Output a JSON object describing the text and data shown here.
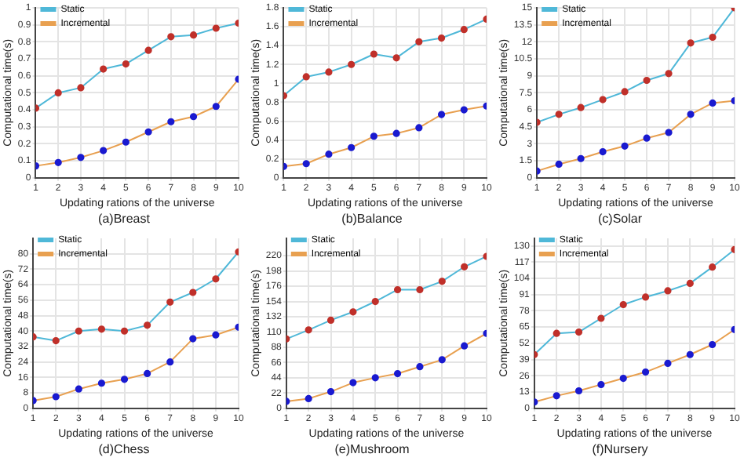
{
  "chart_data": [
    {
      "type": "line",
      "xlabel": "Updating rations of the universe",
      "ylabel": "Computational time(s)",
      "annotations": [
        "(a)Breast"
      ],
      "x": [
        1,
        2,
        3,
        4,
        5,
        6,
        7,
        8,
        9,
        10
      ],
      "xlim": [
        1,
        10
      ],
      "xticks": [
        1,
        2,
        3,
        4,
        5,
        6,
        7,
        8,
        9,
        10
      ],
      "ylim": [
        0,
        1
      ],
      "yticks": [
        0,
        0.1,
        0.2,
        0.3,
        0.4,
        0.5,
        0.6,
        0.7,
        0.8,
        0.9,
        1
      ],
      "grid": true,
      "legend": "top left",
      "marker": "circle",
      "series": [
        {
          "name": "Static",
          "color": "#4fb8d8",
          "colors": [
            "#c0302a",
            "#c0302a",
            "#c0302a",
            "#c0302a",
            "#c0302a",
            "#c0302a",
            "#c0302a",
            "#c0302a",
            "#c0302a",
            "#c0302a"
          ],
          "values": [
            0.41,
            0.5,
            0.53,
            0.64,
            0.67,
            0.75,
            0.83,
            0.84,
            0.88,
            0.91
          ]
        },
        {
          "name": "Incremental",
          "color": "#e8a050",
          "colors": [
            "#1a1ad0",
            "#1a1ad0",
            "#1a1ad0",
            "#1a1ad0",
            "#1a1ad0",
            "#1a1ad0",
            "#1a1ad0",
            "#1a1ad0",
            "#1a1ad0",
            "#1a1ad0"
          ],
          "values": [
            0.07,
            0.09,
            0.12,
            0.16,
            0.21,
            0.27,
            0.33,
            0.36,
            0.42,
            0.58
          ]
        }
      ]
    },
    {
      "type": "line",
      "xlabel": "Updating rations of the universe",
      "ylabel": "Computational time(s)",
      "annotations": [
        "(b)Balance"
      ],
      "x": [
        1,
        2,
        3,
        4,
        5,
        6,
        7,
        8,
        9,
        10
      ],
      "xlim": [
        1,
        10
      ],
      "xticks": [
        1,
        2,
        3,
        4,
        5,
        6,
        7,
        8,
        9,
        10
      ],
      "ylim": [
        0,
        1.8
      ],
      "yticks": [
        0,
        0.2,
        0.4,
        0.6,
        0.8,
        1,
        1.2,
        1.4,
        1.6,
        1.8
      ],
      "grid": true,
      "legend": "top left",
      "marker": "circle",
      "series": [
        {
          "name": "Static",
          "color": "#4fb8d8",
          "colors": [
            "#c0302a",
            "#c0302a",
            "#c0302a",
            "#c0302a",
            "#c0302a",
            "#c0302a",
            "#c0302a",
            "#c0302a",
            "#c0302a",
            "#c0302a"
          ],
          "values": [
            0.87,
            1.07,
            1.12,
            1.2,
            1.31,
            1.27,
            1.44,
            1.48,
            1.57,
            1.68
          ]
        },
        {
          "name": "Incremental",
          "color": "#e8a050",
          "colors": [
            "#1a1ad0",
            "#1a1ad0",
            "#1a1ad0",
            "#1a1ad0",
            "#1a1ad0",
            "#1a1ad0",
            "#1a1ad0",
            "#1a1ad0",
            "#1a1ad0",
            "#1a1ad0"
          ],
          "values": [
            0.12,
            0.15,
            0.25,
            0.32,
            0.44,
            0.47,
            0.53,
            0.67,
            0.72,
            0.76
          ]
        }
      ]
    },
    {
      "type": "line",
      "xlabel": "Updating rations of the universe",
      "ylabel": "Computational time(s)",
      "annotations": [
        "(c)Solar"
      ],
      "x": [
        1,
        2,
        3,
        4,
        5,
        6,
        7,
        8,
        9,
        10
      ],
      "xlim": [
        1,
        10
      ],
      "xticks": [
        1,
        2,
        3,
        4,
        5,
        6,
        7,
        8,
        9,
        10
      ],
      "ylim": [
        0,
        15
      ],
      "yticks": [
        0,
        1.5,
        3,
        4.5,
        6,
        7.5,
        9,
        10.5,
        12,
        13.5,
        15
      ],
      "grid": true,
      "legend": "top left",
      "marker": "circle",
      "series": [
        {
          "name": "Static",
          "color": "#4fb8d8",
          "colors": [
            "#c0302a",
            "#c0302a",
            "#c0302a",
            "#c0302a",
            "#c0302a",
            "#c0302a",
            "#c0302a",
            "#c0302a",
            "#c0302a",
            "#c0302a"
          ],
          "values": [
            4.9,
            5.6,
            6.2,
            6.9,
            7.6,
            8.6,
            9.2,
            11.9,
            12.4,
            15
          ]
        },
        {
          "name": "Incremental",
          "color": "#e8a050",
          "colors": [
            "#1a1ad0",
            "#1a1ad0",
            "#1a1ad0",
            "#1a1ad0",
            "#1a1ad0",
            "#1a1ad0",
            "#1a1ad0",
            "#1a1ad0",
            "#1a1ad0",
            "#1a1ad0"
          ],
          "values": [
            0.6,
            1.2,
            1.7,
            2.3,
            2.8,
            3.5,
            4,
            5.6,
            6.6,
            6.8
          ]
        }
      ]
    },
    {
      "type": "line",
      "xlabel": "Updating rations of the universe",
      "ylabel": "Computational time(s)",
      "annotations": [
        "(d)Chess"
      ],
      "x": [
        1,
        2,
        3,
        4,
        5,
        6,
        7,
        8,
        9,
        10
      ],
      "xlim": [
        1,
        10
      ],
      "xticks": [
        1,
        2,
        3,
        4,
        5,
        6,
        7,
        8,
        9,
        10
      ],
      "ylim": [
        0,
        88
      ],
      "yticks": [
        0,
        8,
        16,
        24,
        32,
        40,
        48,
        56,
        64,
        72,
        80
      ],
      "grid": true,
      "legend": "top left",
      "marker": "circle",
      "series": [
        {
          "name": "Static",
          "color": "#4fb8d8",
          "colors": [
            "#c0302a",
            "#c0302a",
            "#c0302a",
            "#c0302a",
            "#c0302a",
            "#c0302a",
            "#c0302a",
            "#c0302a",
            "#c0302a",
            "#c0302a"
          ],
          "values": [
            37,
            35,
            40,
            41,
            40,
            43,
            55,
            60,
            67,
            81
          ]
        },
        {
          "name": "Incremental",
          "color": "#e8a050",
          "colors": [
            "#1a1ad0",
            "#1a1ad0",
            "#1a1ad0",
            "#1a1ad0",
            "#1a1ad0",
            "#1a1ad0",
            "#1a1ad0",
            "#1a1ad0",
            "#1a1ad0",
            "#1a1ad0"
          ],
          "values": [
            4,
            6,
            10,
            13,
            15,
            18,
            24,
            36,
            38,
            42
          ]
        }
      ]
    },
    {
      "type": "line",
      "xlabel": "Updating rations of the universe",
      "ylabel": "Computational time(s)",
      "annotations": [
        "(e)Mushroom"
      ],
      "x": [
        1,
        2,
        3,
        4,
        5,
        6,
        7,
        8,
        9,
        10
      ],
      "xlim": [
        1,
        10
      ],
      "xticks": [
        1,
        2,
        3,
        4,
        5,
        6,
        7,
        8,
        9,
        10
      ],
      "ylim": [
        0,
        245
      ],
      "yticks": [
        0,
        22,
        44,
        66,
        88,
        110,
        132,
        154,
        176,
        198,
        220
      ],
      "grid": true,
      "legend": "top left",
      "marker": "circle",
      "series": [
        {
          "name": "Static",
          "color": "#4fb8d8",
          "colors": [
            "#c0302a",
            "#c0302a",
            "#c0302a",
            "#c0302a",
            "#c0302a",
            "#c0302a",
            "#c0302a",
            "#c0302a",
            "#c0302a",
            "#c0302a"
          ],
          "values": [
            100,
            113,
            127,
            139,
            154,
            171,
            171,
            183,
            204,
            219
          ]
        },
        {
          "name": "Incremental",
          "color": "#e8a050",
          "colors": [
            "#1a1ad0",
            "#1a1ad0",
            "#1a1ad0",
            "#1a1ad0",
            "#1a1ad0",
            "#1a1ad0",
            "#1a1ad0",
            "#1a1ad0",
            "#1a1ad0",
            "#1a1ad0"
          ],
          "values": [
            10,
            14,
            24,
            37,
            44,
            50,
            60,
            70,
            90,
            108
          ]
        }
      ]
    },
    {
      "type": "line",
      "xlabel": "Updating rations of the universe",
      "ylabel": "Computational time(s)",
      "annotations": [
        "(f)Nursery"
      ],
      "x": [
        1,
        2,
        3,
        4,
        5,
        6,
        7,
        8,
        9,
        10
      ],
      "xlim": [
        1,
        10
      ],
      "xticks": [
        1,
        2,
        3,
        4,
        5,
        6,
        7,
        8,
        9,
        10
      ],
      "ylim": [
        0,
        136
      ],
      "yticks": [
        0,
        13,
        26,
        39,
        52,
        65,
        78,
        91,
        104,
        117,
        130
      ],
      "grid": true,
      "legend": "top left",
      "marker": "circle",
      "series": [
        {
          "name": "Static",
          "color": "#4fb8d8",
          "colors": [
            "#c0302a",
            "#c0302a",
            "#c0302a",
            "#c0302a",
            "#c0302a",
            "#c0302a",
            "#c0302a",
            "#c0302a",
            "#c0302a",
            "#c0302a"
          ],
          "values": [
            43,
            60,
            61,
            72,
            83,
            89,
            94,
            100,
            113,
            127
          ]
        },
        {
          "name": "Incremental",
          "color": "#e8a050",
          "colors": [
            "#1a1ad0",
            "#1a1ad0",
            "#1a1ad0",
            "#1a1ad0",
            "#1a1ad0",
            "#1a1ad0",
            "#1a1ad0",
            "#1a1ad0",
            "#1a1ad0",
            "#1a1ad0"
          ],
          "values": [
            5,
            10,
            14,
            19,
            24,
            29,
            36,
            43,
            51,
            63
          ]
        }
      ]
    }
  ]
}
